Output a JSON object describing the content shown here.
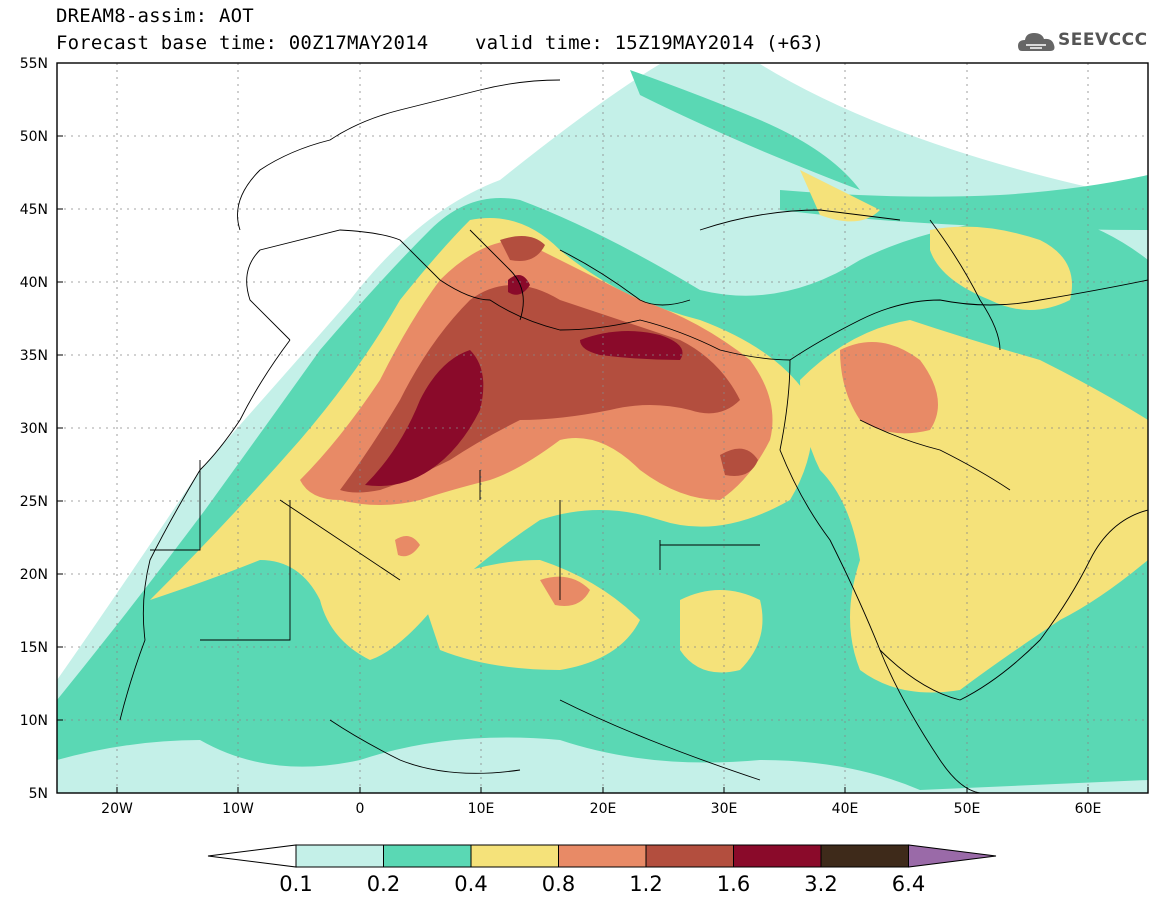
{
  "header": {
    "line1": "DREAM8-assim: AOT",
    "line2": "Forecast base time: 00Z17MAY2014    valid time: 15Z19MAY2014 (+63)"
  },
  "logo": {
    "text": "SEEVCCC",
    "icon": "cloud-logo-icon"
  },
  "map": {
    "lon_range": [
      -25,
      65
    ],
    "lat_range": [
      5,
      55
    ],
    "lat_ticks": [
      "5N",
      "10N",
      "15N",
      "20N",
      "25N",
      "30N",
      "35N",
      "40N",
      "45N",
      "50N",
      "55N"
    ],
    "lon_ticks": [
      "20W",
      "10W",
      "0",
      "10E",
      "20E",
      "30E",
      "40E",
      "50E",
      "60E"
    ],
    "grid": true,
    "background": "#ffffff"
  },
  "colorbar": {
    "labels": [
      "0.1",
      "0.2",
      "0.4",
      "0.8",
      "1.2",
      "1.6",
      "3.2",
      "6.4"
    ],
    "colors": [
      "#c4f0e8",
      "#5ad8b4",
      "#f5e27a",
      "#e88a66",
      "#b34e3e",
      "#8a0a2a",
      "#3e2a1a",
      "#9a6aa8"
    ],
    "extend": "both"
  }
}
